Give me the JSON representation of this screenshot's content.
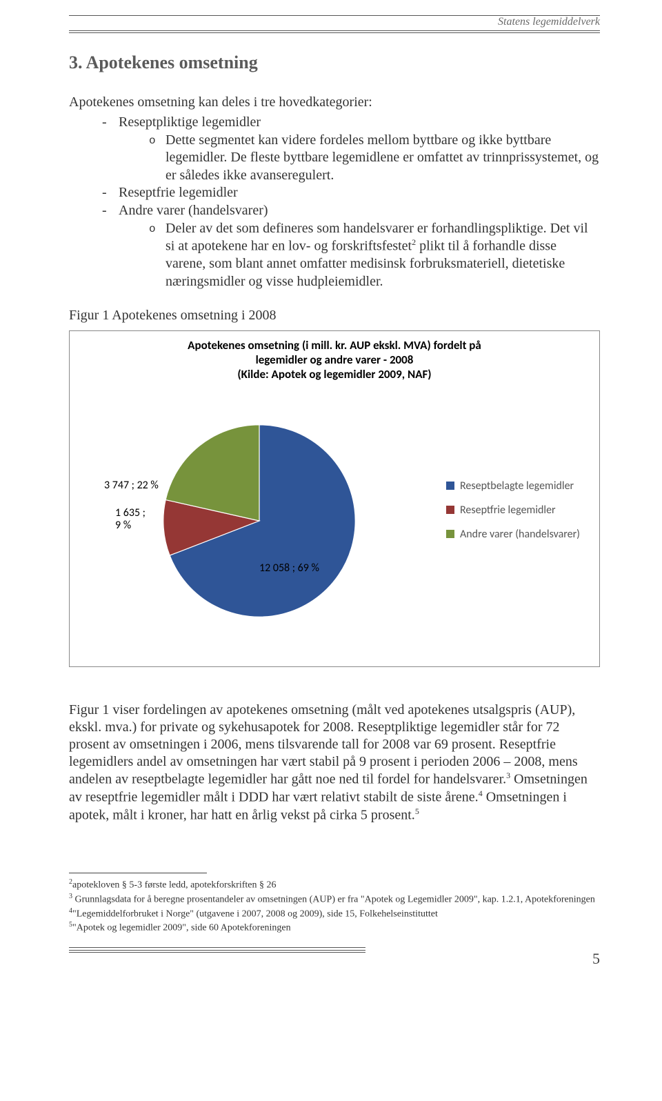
{
  "header": {
    "org": "Statens legemiddelverk"
  },
  "section": {
    "title": "3. Apotekenes omsetning",
    "intro": "Apotekenes omsetning kan deles i tre hovedkategorier:",
    "bullets": {
      "b1": "Reseptpliktige legemidler",
      "b1_sub": "Dette segmentet kan videre fordeles mellom byttbare og ikke byttbare legemidler. De fleste byttbare legemidlene er omfattet av trinnprissystemet, og er således ikke avanseregulert.",
      "b2": "Reseptfrie legemidler",
      "b3": "Andre varer (handelsvarer)",
      "b3_sub_pre": "Deler av det som defineres som handelsvarer er forhandlingspliktige. Det vil si at apotekene har en lov- og forskriftsfestet",
      "b3_sup": "2",
      "b3_sub_post": " plikt til å forhandle disse varene, som blant annet omfatter medisinsk forbruksmateriell, dietetiske næringsmidler og visse hudpleiemidler."
    },
    "figcaption": "Figur 1 Apotekenes omsetning i 2008"
  },
  "chart": {
    "type": "pie",
    "title_l1": "Apotekenes omsetning (i mill. kr. AUP ekskl. MVA) fordelt på",
    "title_l2": "legemidler og andre varer - 2008",
    "title_l3": "(Kilde: Apotek og legemidler 2009, NAF)",
    "background_color": "#ffffff",
    "border_color": "#888888",
    "slices": [
      {
        "label": "Reseptbelagte legemidler",
        "value": 12058,
        "pct": 69,
        "color": "#2f5597",
        "data_label": "12 058 ; 69 %"
      },
      {
        "label": "Reseptfrie legemidler",
        "value": 1635,
        "pct": 9,
        "color": "#953735",
        "data_label_l1": "1 635 ;",
        "data_label_l2": "9 %"
      },
      {
        "label": "Andre varer (handelsvarer)",
        "value": 3747,
        "pct": 22,
        "color": "#77933c",
        "data_label": "3 747 ; 22 %"
      }
    ],
    "label_fontsize": 16,
    "title_fontsize": 17,
    "legend_position": "right"
  },
  "body_para": {
    "t1": "Figur 1 viser fordelingen av apotekenes omsetning (målt ved apotekenes utsalgspris (AUP), ekskl. mva.) for private og sykehusapotek for 2008. Reseptpliktige legemidler står for 72 prosent av omsetningen i 2006, mens tilsvarende tall for 2008 var 69 prosent. Reseptfrie legemidlers andel av omsetningen har vært stabil på 9 prosent i perioden 2006 – 2008, mens andelen av reseptbelagte legemidler har gått noe ned til fordel for handelsvarer.",
    "s3": "3",
    "t2": " Omsetningen av reseptfrie legemidler målt i DDD har vært relativt stabilt de siste årene.",
    "s4": "4",
    "t3": " Omsetningen i apotek, målt i kroner, har hatt en årlig vekst på cirka 5 prosent.",
    "s5": "5"
  },
  "footnotes": {
    "f2": {
      "n": "2",
      "t": "apotekloven § 5-3 første ledd, apotekforskriften § 26"
    },
    "f3": {
      "n": "3",
      "t": " Grunnlagsdata for å beregne prosentandeler av omsetningen (AUP) er fra \"Apotek og Legemidler 2009\", kap. 1.2.1, Apotekforeningen"
    },
    "f4": {
      "n": "4",
      "t": "\"Legemiddelforbruket i Norge\" (utgavene i 2007, 2008 og 2009), side 15, Folkehelseinstituttet"
    },
    "f5": {
      "n": "5",
      "t": "\"Apotek og legemidler 2009\", side 60 Apotekforeningen"
    }
  },
  "page_number": "5"
}
